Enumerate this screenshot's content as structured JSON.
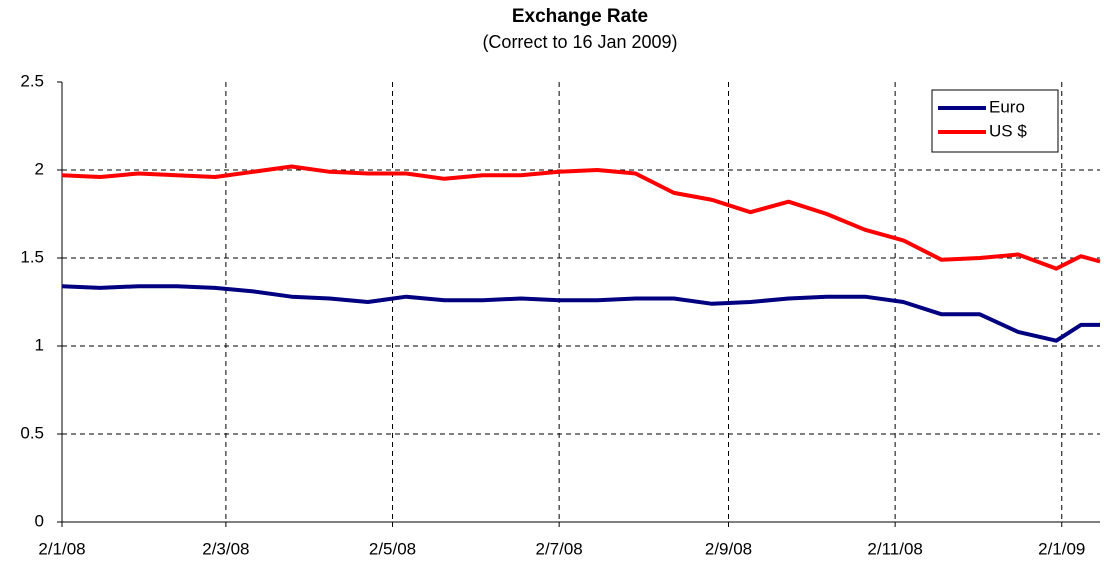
{
  "chart_data": {
    "type": "line",
    "title": "Exchange Rate",
    "subtitle": "(Correct to 16 Jan 2009)",
    "x": [
      "2/1/08",
      "16/1/08",
      "30/1/08",
      "13/2/08",
      "27/2/08",
      "12/3/08",
      "26/3/08",
      "9/4/08",
      "23/4/08",
      "7/5/08",
      "21/5/08",
      "4/6/08",
      "18/6/08",
      "2/7/08",
      "16/7/08",
      "30/7/08",
      "13/8/08",
      "27/8/08",
      "10/9/08",
      "24/9/08",
      "8/10/08",
      "22/10/08",
      "5/11/08",
      "19/11/08",
      "3/12/08",
      "17/12/08",
      "31/12/08",
      "9/1/09",
      "16/1/09"
    ],
    "series": [
      {
        "name": "Euro",
        "color": "#000080",
        "values": [
          1.34,
          1.33,
          1.34,
          1.34,
          1.33,
          1.31,
          1.28,
          1.27,
          1.25,
          1.28,
          1.26,
          1.26,
          1.27,
          1.26,
          1.26,
          1.27,
          1.27,
          1.24,
          1.25,
          1.27,
          1.28,
          1.28,
          1.25,
          1.18,
          1.18,
          1.08,
          1.03,
          1.12,
          1.12
        ]
      },
      {
        "name": "US $",
        "color": "#ff0000",
        "values": [
          1.97,
          1.96,
          1.98,
          1.97,
          1.96,
          1.99,
          2.02,
          1.99,
          1.98,
          1.98,
          1.95,
          1.97,
          1.97,
          1.99,
          2.0,
          1.98,
          1.87,
          1.83,
          1.76,
          1.82,
          1.75,
          1.66,
          1.6,
          1.49,
          1.5,
          1.52,
          1.44,
          1.51,
          1.48
        ]
      }
    ],
    "xlim": [
      "2/1/08",
      "16/1/09"
    ],
    "xticks": [
      "2/1/08",
      "2/3/08",
      "2/5/08",
      "2/7/08",
      "2/9/08",
      "2/11/08",
      "2/1/09"
    ],
    "ylim": [
      0,
      2.5
    ],
    "yticks": [
      0,
      0.5,
      1,
      1.5,
      2,
      2.5
    ],
    "grid": true,
    "legend": "upper right"
  }
}
